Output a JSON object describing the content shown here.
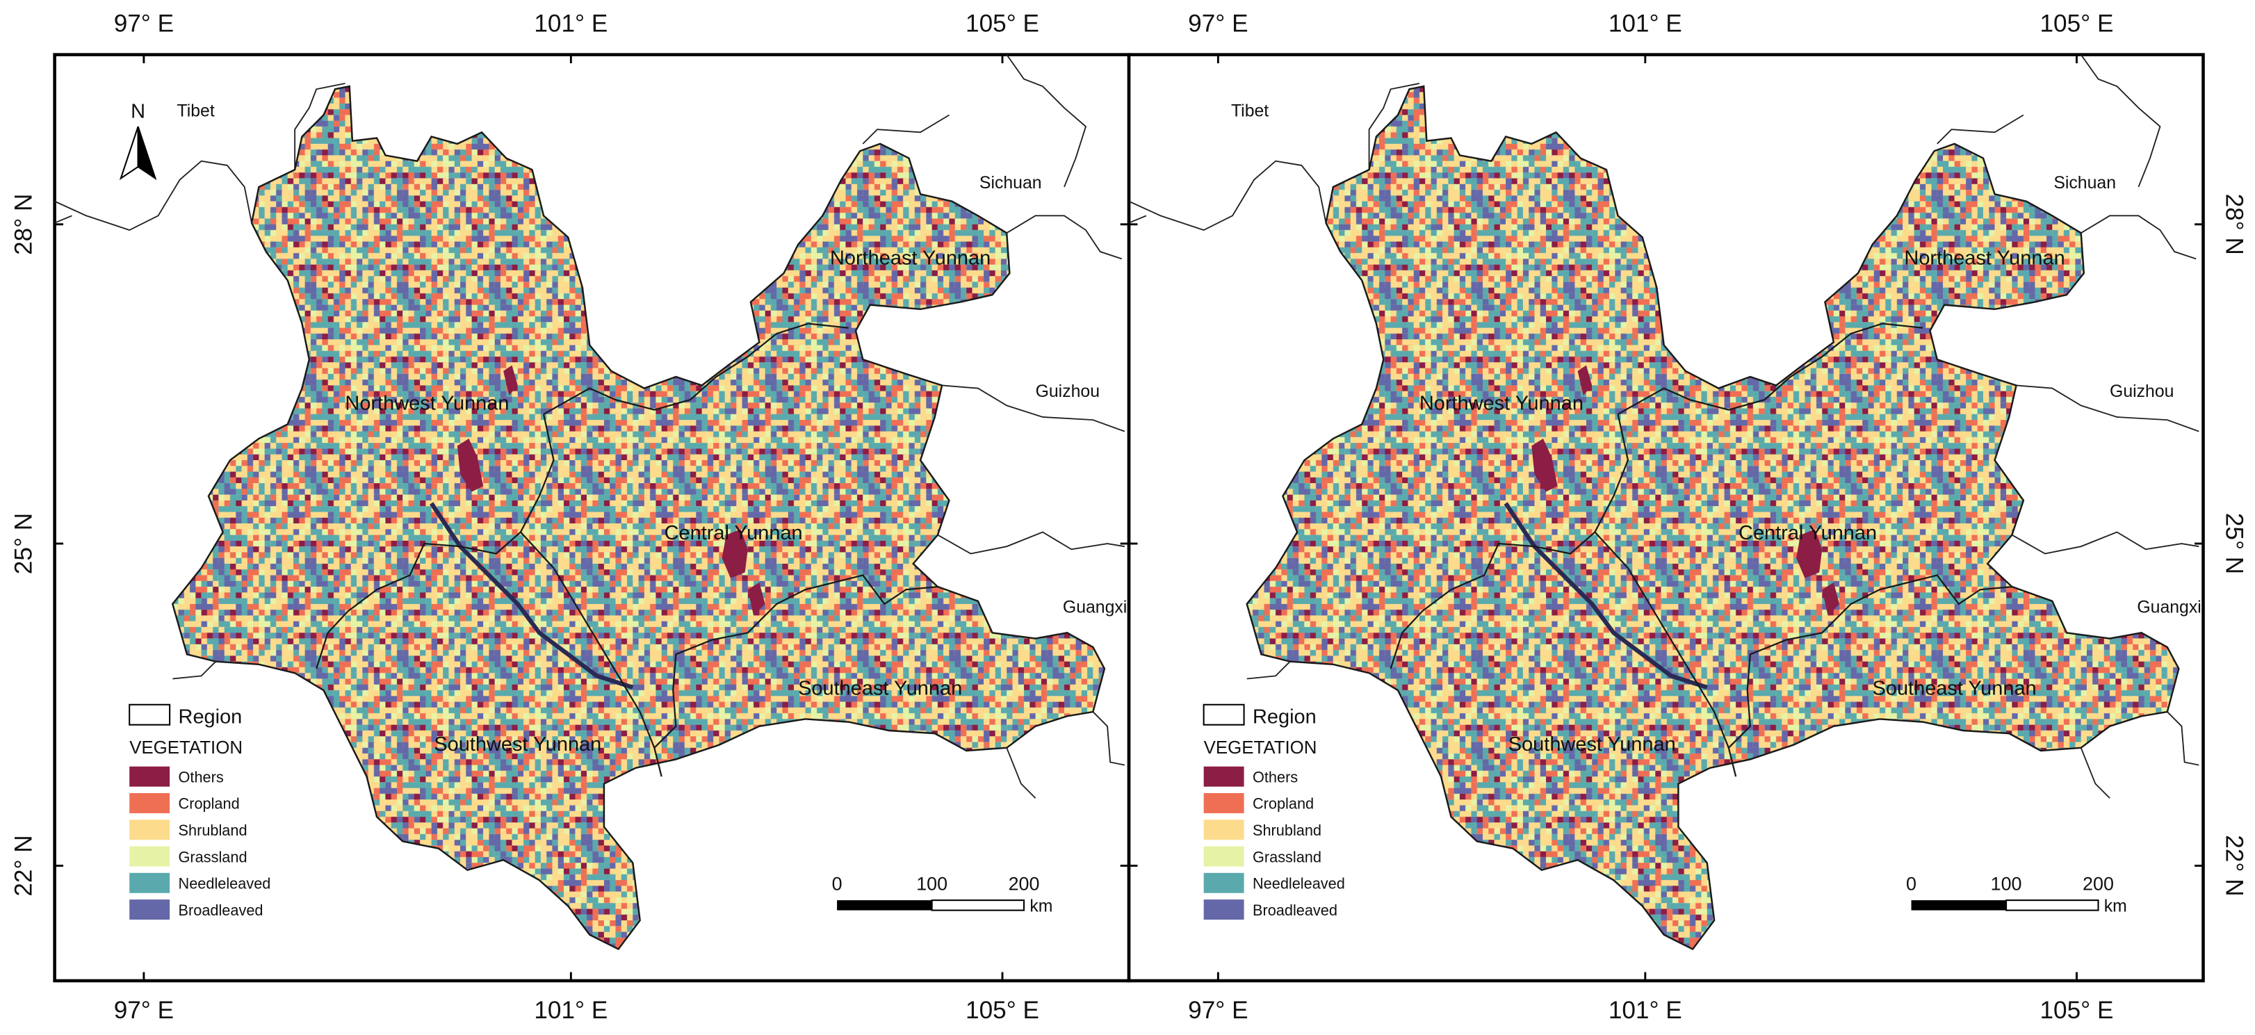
{
  "longitude_labels": [
    "97° E",
    "101° E",
    "105° E"
  ],
  "latitude_labels": [
    "28° N",
    "25° N",
    "22° N"
  ],
  "places": [
    "Tibet",
    "Sichuan",
    "Guizhou",
    "Guangxi"
  ],
  "regions": [
    "Northwest Yunnan",
    "Northeast Yunnan",
    "Central Yunnan",
    "Southeast Yunnan",
    "Southwest Yunnan"
  ],
  "north_arrow_letter": "N",
  "legend": {
    "region_label": "Region",
    "title": "VEGETATION",
    "classes": [
      {
        "label": "Others",
        "color": "#8c1d45"
      },
      {
        "label": "Cropland",
        "color": "#ef6f55"
      },
      {
        "label": "Shrubland",
        "color": "#fddb8c"
      },
      {
        "label": "Grassland",
        "color": "#e6f3a6"
      },
      {
        "label": "Needleleaved",
        "color": "#5aaaad"
      },
      {
        "label": "Broadleaved",
        "color": "#6468a8"
      }
    ]
  },
  "scale_bar": {
    "ticks": [
      "0",
      "100",
      "200"
    ],
    "unit": "km"
  },
  "colors": {
    "frame": "#000000",
    "boundary": "#1a1a1a"
  }
}
